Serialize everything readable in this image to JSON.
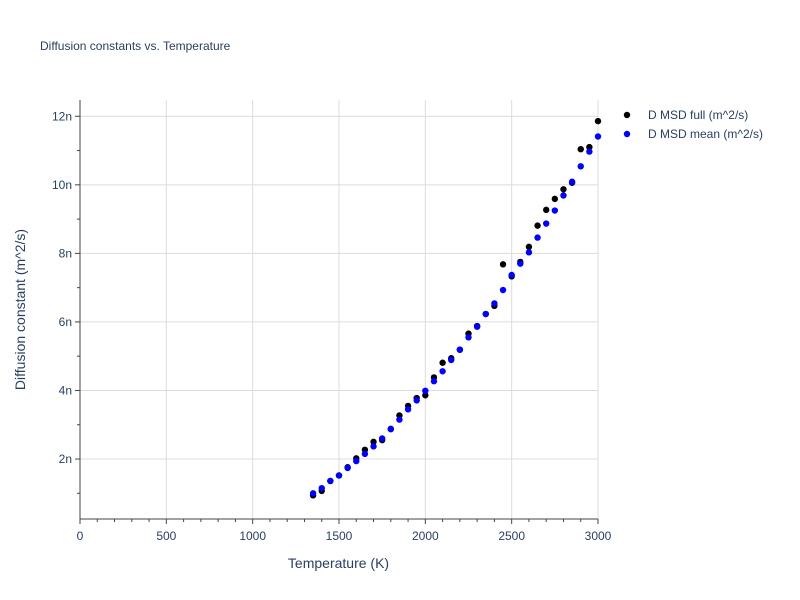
{
  "chart_data": {
    "type": "scatter",
    "title": "Diffusion constants vs. Temperature",
    "xlabel": "Temperature (K)",
    "ylabel": "Diffusion constant (m^2/s)",
    "xlim": [
      0,
      3000
    ],
    "ylim": [
      2.5e-10,
      1.2475e-08
    ],
    "x_ticks": [
      0,
      500,
      1000,
      1500,
      2000,
      2500,
      3000
    ],
    "x_tick_labels": [
      "0",
      "500",
      "1000",
      "1500",
      "2000",
      "2500",
      "3000"
    ],
    "y_ticks": [
      2e-09,
      4e-09,
      6e-09,
      8e-09,
      1e-08,
      1.2e-08
    ],
    "y_tick_labels": [
      "2n",
      "4n",
      "6n",
      "8n",
      "10n",
      "12n"
    ],
    "grid": true,
    "legend_position": "top-right",
    "series": [
      {
        "name": "D MSD full (m^2/s)",
        "color": "#000000",
        "x": [
          1350,
          1400,
          1450,
          1500,
          1550,
          1600,
          1650,
          1700,
          1750,
          1800,
          1850,
          1900,
          1950,
          2000,
          2050,
          2100,
          2150,
          2200,
          2250,
          2300,
          2350,
          2400,
          2450,
          2500,
          2550,
          2600,
          2650,
          2700,
          2750,
          2800,
          2850,
          2900,
          2950,
          3000
        ],
        "y": [
          9.4e-10,
          1.07e-09,
          1.36e-09,
          1.52e-09,
          1.76e-09,
          2.02e-09,
          2.27e-09,
          2.5e-09,
          2.55e-09,
          2.88e-09,
          3.27e-09,
          3.55e-09,
          3.78e-09,
          3.86e-09,
          4.38e-09,
          4.81e-09,
          4.94e-09,
          5.19e-09,
          5.66e-09,
          5.88e-09,
          6.23e-09,
          6.47e-09,
          7.68e-09,
          7.33e-09,
          7.75e-09,
          8.19e-09,
          8.81e-09,
          9.27e-09,
          9.59e-09,
          9.87e-09,
          1.006e-08,
          1.104e-08,
          1.11e-08,
          1.186e-08
        ]
      },
      {
        "name": "D MSD mean (m^2/s)",
        "color": "#0000ff",
        "x": [
          1350,
          1400,
          1450,
          1500,
          1550,
          1600,
          1650,
          1700,
          1750,
          1800,
          1850,
          1900,
          1950,
          2000,
          2050,
          2100,
          2150,
          2200,
          2250,
          2300,
          2350,
          2400,
          2450,
          2500,
          2550,
          2600,
          2650,
          2700,
          2750,
          2800,
          2850,
          2900,
          2950,
          3000
        ],
        "y": [
          1e-09,
          1.15e-09,
          1.36e-09,
          1.52e-09,
          1.74e-09,
          1.94e-09,
          2.15e-09,
          2.37e-09,
          2.6e-09,
          2.87e-09,
          3.15e-09,
          3.45e-09,
          3.71e-09,
          3.99e-09,
          4.27e-09,
          4.56e-09,
          4.89e-09,
          5.19e-09,
          5.55e-09,
          5.86e-09,
          6.23e-09,
          6.54e-09,
          6.93e-09,
          7.37e-09,
          7.7e-09,
          8.03e-09,
          8.46e-09,
          8.87e-09,
          9.25e-09,
          9.69e-09,
          1.009e-08,
          1.054e-08,
          1.097e-08,
          1.141e-08
        ]
      }
    ]
  }
}
